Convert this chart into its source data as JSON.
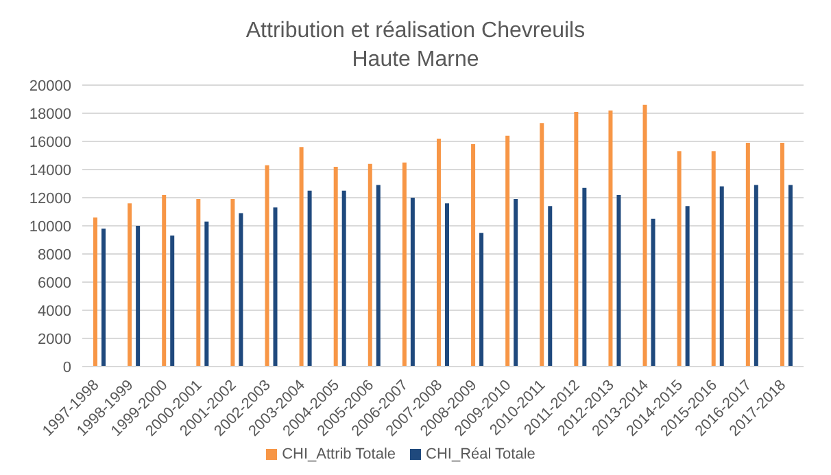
{
  "chart_data": {
    "type": "bar",
    "title": "Attribution et réalisation Chevreuils",
    "subtitle": "Haute Marne",
    "categories": [
      "1997-1998",
      "1998-1999",
      "1999-2000",
      "2000-2001",
      "2001-2002",
      "2002-2003",
      "2003-2004",
      "2004-2005",
      "2005-2006",
      "2006-2007",
      "2007-2008",
      "2008-2009",
      "2009-2010",
      "2010-2011",
      "2011-2012",
      "2012-2013",
      "2013-2014",
      "2014-2015",
      "2015-2016",
      "2016-2017",
      "2017-2018"
    ],
    "series": [
      {
        "name": "CHI_Attrib Totale",
        "color": "#f79646",
        "values": [
          10600,
          11600,
          12200,
          11900,
          11900,
          14300,
          15600,
          14200,
          14400,
          14500,
          16200,
          15800,
          16400,
          17300,
          18100,
          18200,
          18600,
          15300,
          15300,
          15900,
          15900
        ]
      },
      {
        "name": "CHI_Réal Totale",
        "color": "#1f497d",
        "values": [
          9800,
          10000,
          9300,
          10300,
          10900,
          11300,
          12500,
          12500,
          12900,
          12000,
          11600,
          9500,
          11900,
          11400,
          12700,
          12200,
          10500,
          11400,
          12800,
          12900,
          12900
        ]
      }
    ],
    "ylim": [
      0,
      20000
    ],
    "yticks": [
      0,
      2000,
      4000,
      6000,
      8000,
      10000,
      12000,
      14000,
      16000,
      18000,
      20000
    ],
    "grid": "y",
    "legend": "bottom"
  }
}
